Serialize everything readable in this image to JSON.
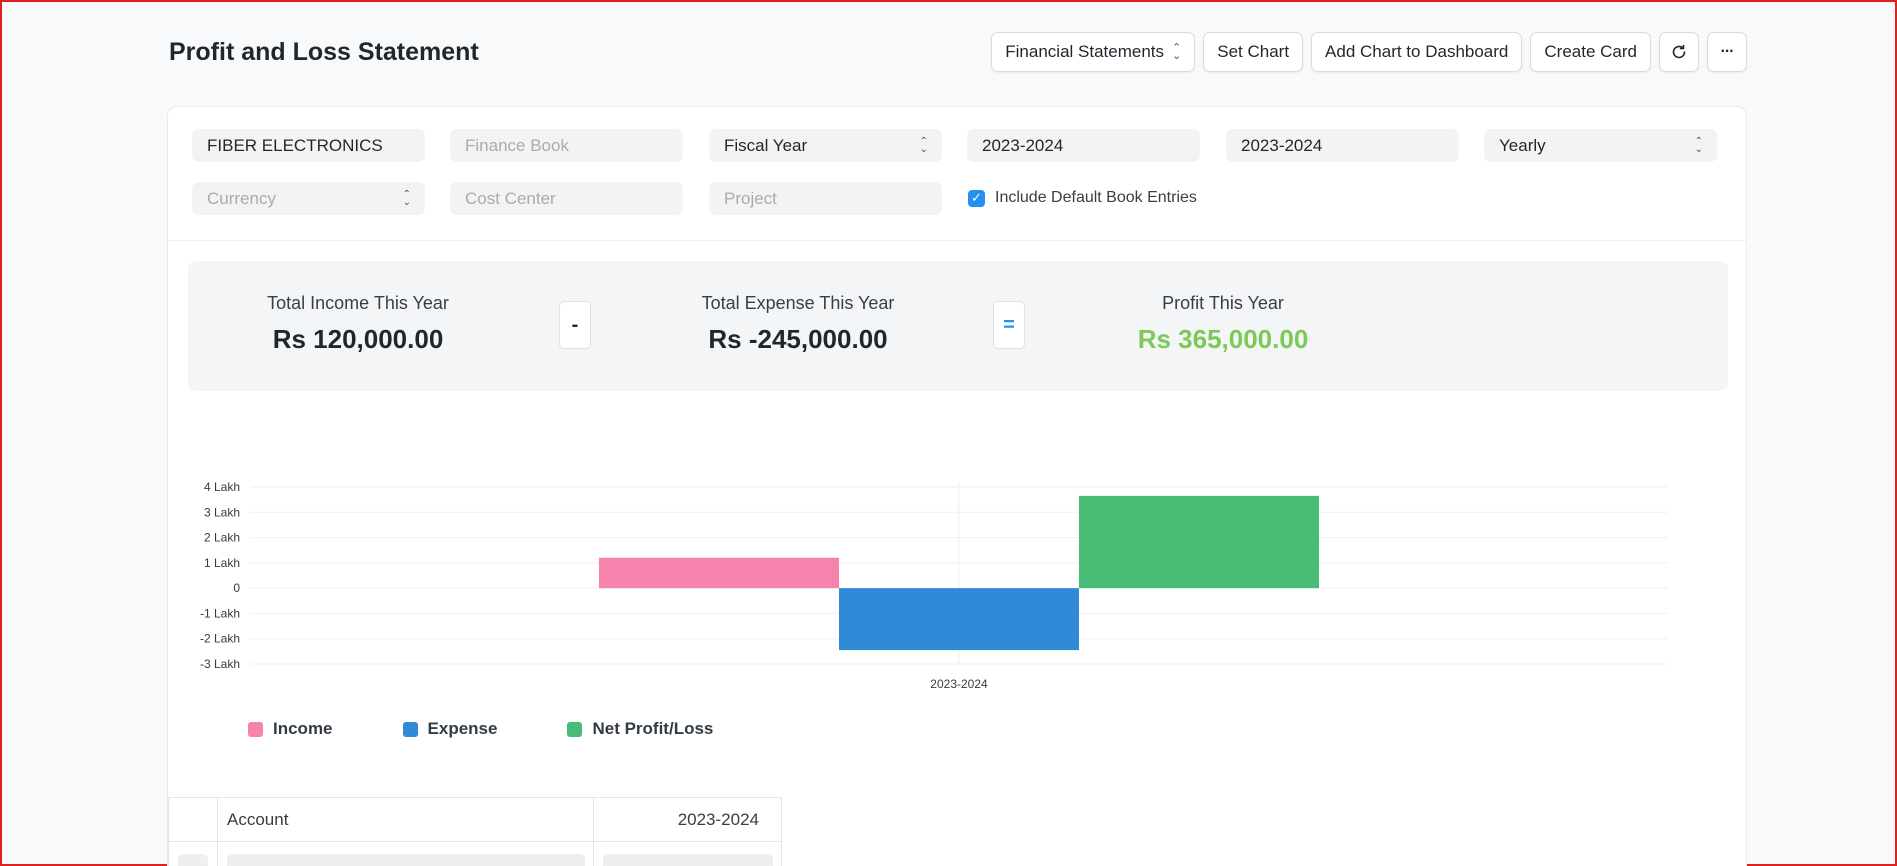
{
  "page": {
    "title": "Profit and Loss Statement"
  },
  "actions": {
    "financial_statements": "Financial Statements",
    "set_chart": "Set Chart",
    "add_chart": "Add Chart to Dashboard",
    "create_card": "Create Card",
    "refresh_icon": "refresh-icon",
    "more_icon": "ellipsis-icon",
    "more_glyph": "···"
  },
  "filters": {
    "company": "FIBER ELECTRONICS",
    "finance_book_placeholder": "Finance Book",
    "period_type": "Fiscal Year",
    "from_year": "2023-2024",
    "to_year": "2023-2024",
    "periodicity": "Yearly",
    "currency_placeholder": "Currency",
    "cost_center_placeholder": "Cost Center",
    "project_placeholder": "Project",
    "include_default_book": "Include Default Book Entries",
    "include_default_book_checked": true
  },
  "summary": {
    "income_label": "Total Income This Year",
    "income_value": "Rs 120,000.00",
    "minus": "-",
    "expense_label": "Total Expense This Year",
    "expense_value": "Rs -245,000.00",
    "equals": "=",
    "profit_label": "Profit This Year",
    "profit_value": "Rs 365,000.00",
    "profit_color": "#7cc957"
  },
  "chart_data": {
    "type": "bar",
    "categories": [
      "2023-2024"
    ],
    "series": [
      {
        "name": "Income",
        "values": [
          120000
        ],
        "color": "#f683ae"
      },
      {
        "name": "Expense",
        "values": [
          -245000
        ],
        "color": "#318ad8"
      },
      {
        "name": "Net Profit/Loss",
        "values": [
          365000
        ],
        "color": "#48bb74"
      }
    ],
    "yticks": [
      {
        "value": 400000,
        "label": "4 Lakh"
      },
      {
        "value": 300000,
        "label": "3 Lakh"
      },
      {
        "value": 200000,
        "label": "2 Lakh"
      },
      {
        "value": 100000,
        "label": "1 Lakh"
      },
      {
        "value": 0,
        "label": "0"
      },
      {
        "value": -100000,
        "label": "-1 Lakh"
      },
      {
        "value": -200000,
        "label": "-2 Lakh"
      },
      {
        "value": -300000,
        "label": "-3 Lakh"
      }
    ],
    "ylim": [
      -300000,
      400000
    ],
    "grid": true,
    "legend": "bottom-left"
  },
  "table": {
    "columns": [
      "Account",
      "2023-2024"
    ]
  }
}
